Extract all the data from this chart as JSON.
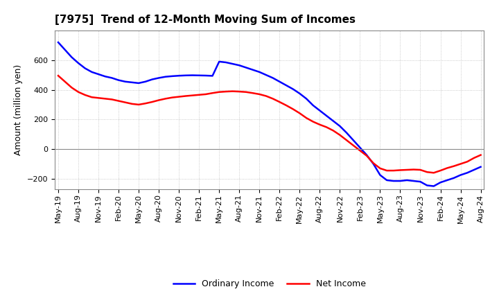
{
  "title": "[7975]  Trend of 12-Month Moving Sum of Incomes",
  "ylabel": "Amount (million yen)",
  "title_fontsize": 11,
  "label_fontsize": 9,
  "tick_fontsize": 8,
  "line_color_ordinary": "#0000FF",
  "line_color_net": "#FF0000",
  "line_width": 1.8,
  "legend_ordinary": "Ordinary Income",
  "legend_net": "Net Income",
  "ylim": [
    -270,
    800
  ],
  "yticks": [
    -200,
    0,
    200,
    400,
    600
  ],
  "background_color": "#FFFFFF",
  "grid_color": "#AAAAAA",
  "ordinary_income": [
    720,
    670,
    620,
    580,
    545,
    520,
    505,
    490,
    480,
    465,
    455,
    450,
    445,
    455,
    470,
    480,
    488,
    492,
    495,
    497,
    498,
    497,
    496,
    494,
    590,
    585,
    575,
    565,
    550,
    535,
    520,
    500,
    480,
    455,
    430,
    405,
    375,
    340,
    295,
    260,
    225,
    190,
    155,
    110,
    60,
    10,
    -40,
    -100,
    -175,
    -210,
    -215,
    -215,
    -210,
    -215,
    -220,
    -245,
    -250,
    -225,
    -210,
    -195,
    -175,
    -160,
    -140,
    -120
  ],
  "net_income": [
    495,
    455,
    415,
    385,
    365,
    350,
    345,
    340,
    335,
    325,
    315,
    305,
    300,
    308,
    318,
    330,
    340,
    348,
    353,
    358,
    362,
    366,
    370,
    378,
    385,
    388,
    390,
    388,
    385,
    378,
    370,
    358,
    340,
    318,
    295,
    270,
    242,
    210,
    185,
    165,
    148,
    125,
    95,
    60,
    25,
    -10,
    -45,
    -95,
    -130,
    -145,
    -145,
    -142,
    -140,
    -138,
    -140,
    -155,
    -160,
    -145,
    -128,
    -115,
    -100,
    -85,
    -60,
    -40
  ],
  "xtick_labels": [
    "May-19",
    "Aug-19",
    "Nov-19",
    "Feb-20",
    "May-20",
    "Aug-20",
    "Nov-20",
    "Feb-21",
    "May-21",
    "Aug-21",
    "Nov-21",
    "Feb-22",
    "May-22",
    "Aug-22",
    "Nov-22",
    "Feb-23",
    "May-23",
    "Aug-23",
    "Nov-23",
    "Feb-24",
    "May-24",
    "Aug-24"
  ],
  "xtick_positions": [
    0,
    3,
    6,
    9,
    12,
    15,
    18,
    21,
    24,
    27,
    30,
    33,
    36,
    39,
    42,
    45,
    48,
    51,
    54,
    57,
    60,
    63
  ]
}
